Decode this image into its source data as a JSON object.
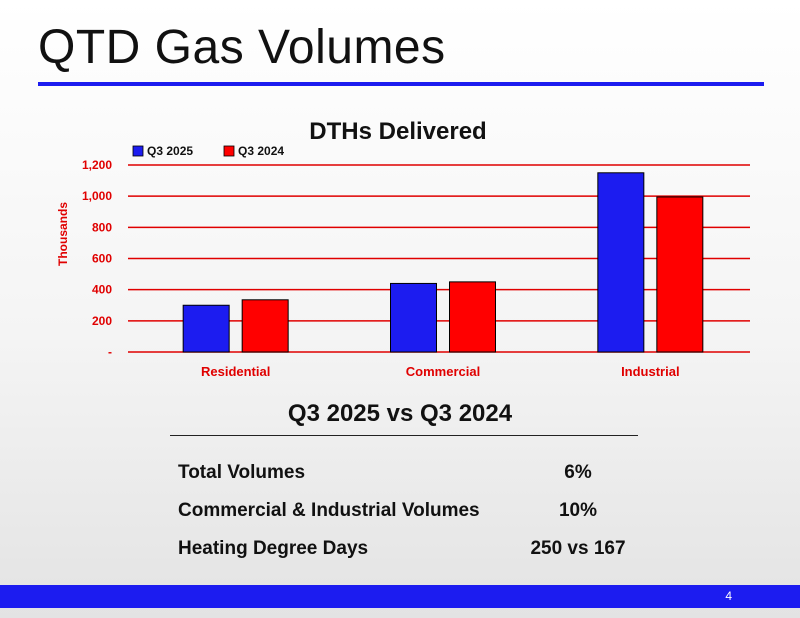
{
  "slide": {
    "title": "QTD Gas Volumes",
    "page_number": "4",
    "accent_color": "#1c1cf0"
  },
  "chart_data": {
    "type": "bar",
    "title": "DTHs Delivered",
    "categories": [
      "Residential",
      "Commercial",
      "Industrial"
    ],
    "series": [
      {
        "name": "Q3 2025",
        "values": [
          300,
          440,
          1150
        ],
        "color": "#1c1cf0"
      },
      {
        "name": "Q3 2024",
        "values": [
          335,
          450,
          995
        ],
        "color": "#ff0000"
      }
    ],
    "ylabel": "Thousands",
    "xlabel": "",
    "ylim": [
      0,
      1200
    ],
    "yticks": [
      0,
      200,
      400,
      600,
      800,
      1000,
      1200
    ],
    "ytick_labels": [
      "-",
      "200",
      "400",
      "600",
      "800",
      "1,000",
      "1,200"
    ],
    "grid": true,
    "gridline_color": "#e00000",
    "label_color": "#e00000",
    "legend_position": "top-left"
  },
  "comparison": {
    "title": "Q3 2025 vs Q3 2024",
    "rows": [
      {
        "label": "Total Volumes",
        "value": "6%"
      },
      {
        "label": "Commercial & Industrial Volumes",
        "value": "10%"
      },
      {
        "label": "Heating Degree Days",
        "value": "250 vs 167"
      }
    ]
  }
}
